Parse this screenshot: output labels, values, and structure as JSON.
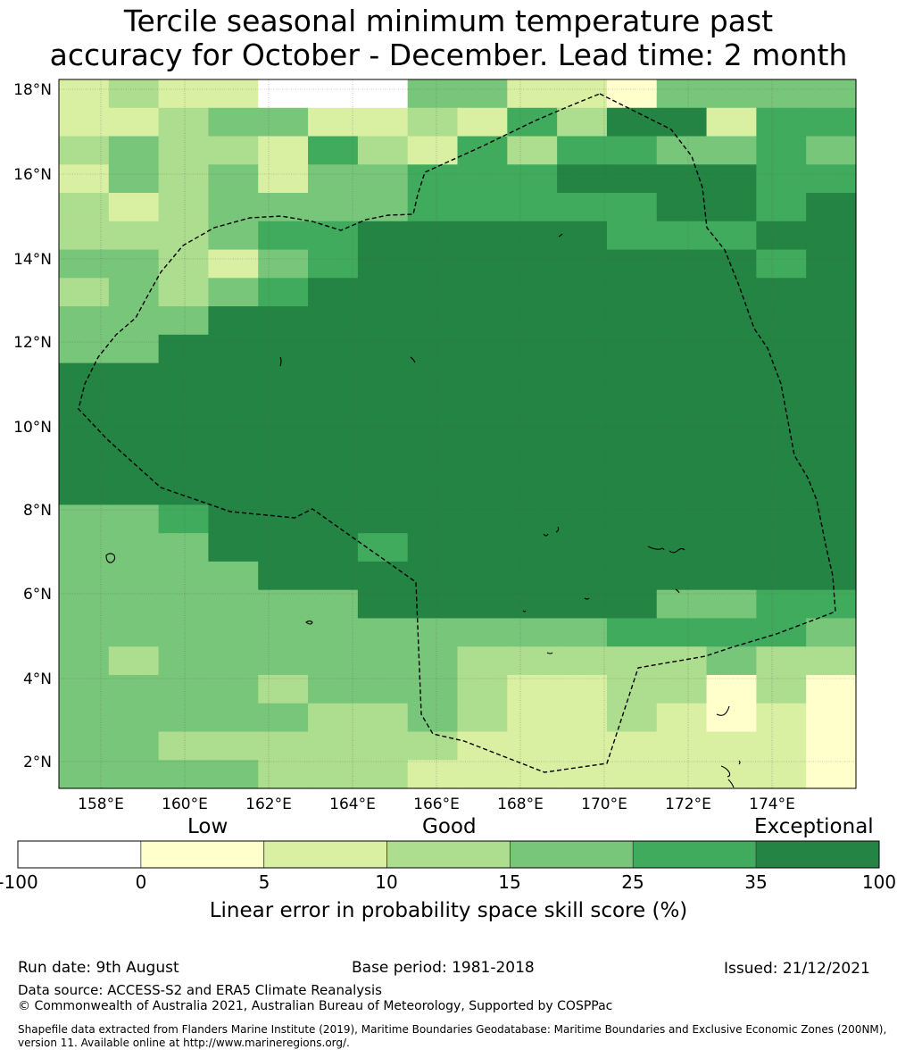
{
  "title": {
    "line1": "Tercile seasonal minimum temperature past",
    "line2": "accuracy for October - December. Lead time: 2 month"
  },
  "map": {
    "lat_labels": [
      "18°N",
      "16°N",
      "14°N",
      "12°N",
      "10°N",
      "8°N",
      "6°N",
      "4°N",
      "2°N"
    ],
    "lon_labels": [
      "158°E",
      "160°E",
      "162°E",
      "164°E",
      "166°E",
      "168°E",
      "170°E",
      "172°E",
      "174°E"
    ],
    "boundary_style": "dashed",
    "legend_colors": {
      "neg": "#ffffff",
      "0_5": "#ffffcc",
      "5_10": "#d9f0a3",
      "10_15": "#addd8e",
      "15_25": "#78c679",
      "25_35": "#41ab5d",
      "35_100": "#238443"
    },
    "grid_rows": [
      "2322EEE442214444",
      "2234422325366255",
      "3433253253554454",
      "2434244555666655",
      "3234444555556656",
      "3334556666655566",
      "4432456666666656",
      "3434566666666666",
      "4446666666666666",
      "4466666666666666",
      "6666666666666666",
      "6666666666666666",
      "6666666666666666",
      "6666666666666666",
      "6666666666666666",
      "4456666666666666",
      "4446665666666666",
      "4444666666666666",
      "4444446666664455",
      "4444444444455554",
      "4344444433333433",
      "4444344432233131",
      "4444433432232121",
      "4433333322222220",
      "4444333222222221"
    ]
  },
  "colorbar": {
    "category_labels": [
      "Low",
      "Good",
      "Exceptional"
    ],
    "ticks": [
      "-100",
      "0",
      "5",
      "10",
      "15",
      "25",
      "35",
      "100"
    ],
    "title": "Linear error in probability space skill score (%)"
  },
  "footer": {
    "run_date": "Run date: 9th August",
    "base_period": "Base period: 1981-2018",
    "issued": "Issued: 21/12/2021",
    "data_source": "Data source: ACCESS-S2 and ERA5 Climate Reanalysis",
    "copyright": "© Commonwealth of Australia 2021, Australian Bureau of Meteorology, Supported by COSPPac",
    "shapefile_line1": "Shapefile data extracted from Flanders Marine Institute (2019), Maritime Boundaries Geodatabase: Maritime Boundaries and Exclusive Economic Zones (200NM),",
    "shapefile_line2": "version 11. Available online at http://www.marineregions.org/."
  }
}
